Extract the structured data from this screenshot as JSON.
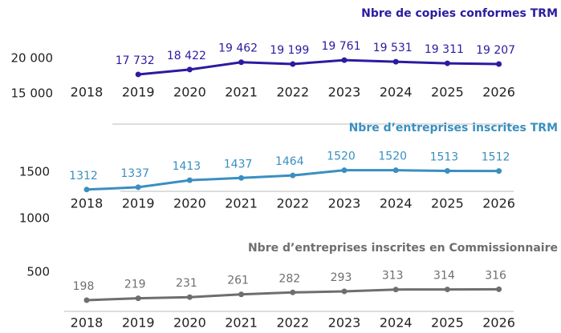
{
  "chart_data": [
    {
      "type": "line",
      "title": "Nbre de copies conformes TRM",
      "color": "#2b1ba0",
      "categories": [
        "2018",
        "2019",
        "2020",
        "2021",
        "2022",
        "2023",
        "2024",
        "2025",
        "2026"
      ],
      "values": [
        null,
        17732,
        18422,
        19462,
        19199,
        19761,
        19531,
        19311,
        19207
      ],
      "value_labels": [
        null,
        "17 732",
        "18 422",
        "19 462",
        "19 199",
        "19 761",
        "19 531",
        "19 311",
        "19 207"
      ],
      "ylim": [
        15000,
        20000
      ],
      "yticks": [
        {
          "value": 15000,
          "label": "15 000"
        },
        {
          "value": 20000,
          "label": "20 000"
        }
      ]
    },
    {
      "type": "line",
      "title": "Nbre d’entreprises inscrites TRM",
      "color": "#3a8fc0",
      "categories": [
        "2018",
        "2019",
        "2020",
        "2021",
        "2022",
        "2023",
        "2024",
        "2025",
        "2026"
      ],
      "values": [
        1312,
        1337,
        1413,
        1437,
        1464,
        1520,
        1520,
        1513,
        1512
      ],
      "ylim": [
        1000,
        1500
      ],
      "yticks": [
        1000,
        1500
      ]
    },
    {
      "type": "line",
      "title": "Nbre d’entreprises inscrites en Commissionnaire",
      "color": "#6e6e6e",
      "categories": [
        "2018",
        "2019",
        "2020",
        "2021",
        "2022",
        "2023",
        "2024",
        "2025",
        "2026"
      ],
      "values": [
        198,
        219,
        231,
        261,
        282,
        293,
        313,
        314,
        316
      ],
      "ylim": [
        0,
        500
      ],
      "yticks": [
        500
      ]
    }
  ]
}
